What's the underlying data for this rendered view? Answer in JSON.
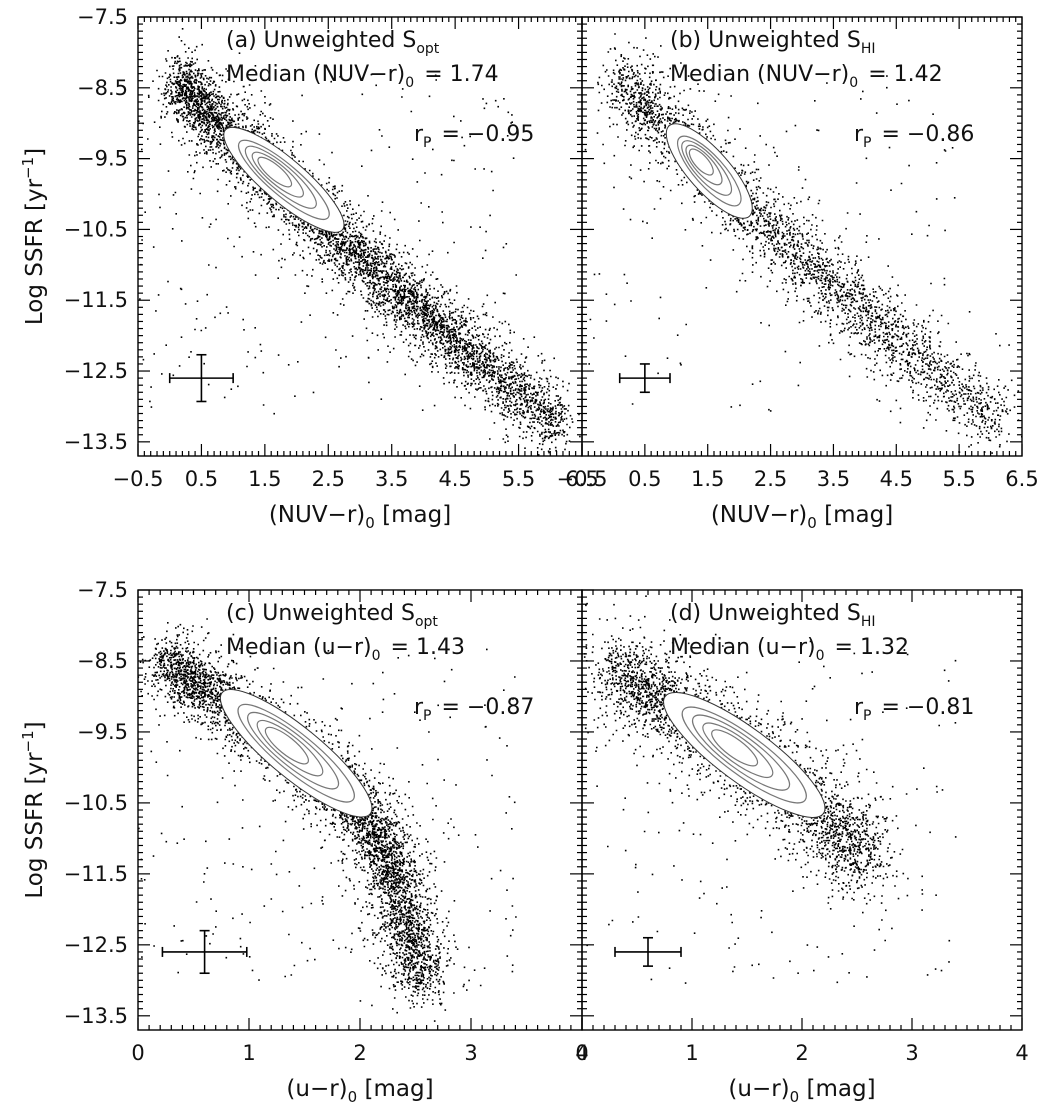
{
  "chart_data": [
    {
      "panel": "a",
      "type": "scatter",
      "title_prefix": "(a) Unweighted S",
      "title_sub": "opt",
      "median_prefix": "Median (NUV−r)",
      "median_sub": "0",
      "median_value": "= 1.74",
      "corr_prefix": "r",
      "corr_sub": "P",
      "corr_value": "= −0.95",
      "xlabel_main": "(NUV−r)",
      "xlabel_sub": "0",
      "xlabel_unit": " [mag]",
      "ylabel_main": "Log SSFR [yr",
      "ylabel_sup": "−1",
      "ylabel_end": "]",
      "xlim": [
        -0.5,
        6.5
      ],
      "ylim": [
        -13.7,
        -7.5
      ],
      "xticks": [
        "−0.5",
        "0.5",
        "1.5",
        "2.5",
        "3.5",
        "4.5",
        "5.5",
        "6.5"
      ],
      "yticks": [
        "−7.5",
        "−8.5",
        "−9.5",
        "−10.5",
        "−11.5",
        "−12.5",
        "−13.5"
      ],
      "errorbar": {
        "x": 0.5,
        "y": -12.6,
        "xerr": 0.5,
        "yerr": 0.33
      },
      "relation": {
        "x": [
          0.1,
          1.0,
          2.0,
          3.0,
          4.0,
          5.0,
          6.2
        ],
        "y": [
          -8.4,
          -9.2,
          -10.05,
          -10.9,
          -11.7,
          -12.45,
          -13.3
        ],
        "scatter": 0.25,
        "n": 5400
      },
      "contour_ridge": {
        "x0": 0.95,
        "y0": -9.15,
        "x1": 2.65,
        "y1": -10.45,
        "width": 0.16
      }
    },
    {
      "panel": "b",
      "type": "scatter",
      "title_prefix": "(b) Unweighted S",
      "title_sub": "HI",
      "median_prefix": "Median (NUV−r)",
      "median_sub": "0",
      "median_value": "= 1.42",
      "corr_prefix": "r",
      "corr_sub": "P",
      "corr_value": "= −0.86",
      "xlabel_main": "(NUV−r)",
      "xlabel_sub": "0",
      "xlabel_unit": " [mag]",
      "ylabel_main": "",
      "ylabel_sup": "",
      "ylabel_end": "",
      "xlim": [
        -0.5,
        6.5
      ],
      "ylim": [
        -13.7,
        -7.5
      ],
      "xticks": [
        "−0.5",
        "0.5",
        "1.5",
        "2.5",
        "3.5",
        "4.5",
        "5.5",
        "6.5"
      ],
      "yticks": [],
      "errorbar": {
        "x": 0.5,
        "y": -12.6,
        "xerr": 0.4,
        "yerr": 0.2
      },
      "relation": {
        "x": [
          0.1,
          1.0,
          2.0,
          3.0,
          4.0,
          5.0,
          6.2
        ],
        "y": [
          -8.4,
          -9.2,
          -10.1,
          -10.9,
          -11.7,
          -12.45,
          -13.2
        ],
        "scatter": 0.28,
        "n": 3000
      },
      "contour_ridge": {
        "x0": 0.95,
        "y0": -9.1,
        "x1": 2.1,
        "y1": -10.25,
        "width": 0.15
      }
    },
    {
      "panel": "c",
      "type": "scatter",
      "title_prefix": "(c) Unweighted S",
      "title_sub": "opt",
      "median_prefix": "Median (u−r)",
      "median_sub": "0",
      "median_value": "= 1.43",
      "corr_prefix": "r",
      "corr_sub": "P",
      "corr_value": "= −0.87",
      "xlabel_main": "(u−r)",
      "xlabel_sub": "0",
      "xlabel_unit": " [mag]",
      "ylabel_main": "Log SSFR [yr",
      "ylabel_sup": "−1",
      "ylabel_end": "]",
      "xlim": [
        0,
        4
      ],
      "ylim": [
        -13.7,
        -7.5
      ],
      "xticks": [
        "0",
        "1",
        "2",
        "3",
        "4"
      ],
      "yticks": [
        "−7.5",
        "−8.5",
        "−9.5",
        "−10.5",
        "−11.5",
        "−12.5",
        "−13.5"
      ],
      "errorbar": {
        "x": 0.6,
        "y": -12.6,
        "xerr": 0.38,
        "yerr": 0.3
      },
      "relation": {
        "x": [
          0.25,
          0.7,
          1.3,
          1.8,
          2.1,
          2.3,
          2.45,
          2.55
        ],
        "y": [
          -8.5,
          -9.0,
          -9.7,
          -10.3,
          -10.8,
          -11.5,
          -12.3,
          -13.1
        ],
        "scatter": 0.22,
        "n": 4800
      },
      "contour_ridge": {
        "x0": 0.8,
        "y0": -9.0,
        "x1": 2.05,
        "y1": -10.6,
        "width": 0.22
      }
    },
    {
      "panel": "d",
      "type": "scatter",
      "title_prefix": "(d) Unweighted S",
      "title_sub": "HI",
      "median_prefix": "Median (u−r)",
      "median_sub": "0",
      "median_value": "= 1.32",
      "corr_prefix": "r",
      "corr_sub": "P",
      "corr_value": "= −0.81",
      "xlabel_main": "(u−r)",
      "xlabel_sub": "0",
      "xlabel_unit": " [mag]",
      "ylabel_main": "",
      "ylabel_sup": "",
      "ylabel_end": "",
      "xlim": [
        0,
        4
      ],
      "ylim": [
        -13.7,
        -7.5
      ],
      "xticks": [
        "0",
        "1",
        "2",
        "3",
        "4"
      ],
      "yticks": [],
      "errorbar": {
        "x": 0.6,
        "y": -12.6,
        "xerr": 0.3,
        "yerr": 0.2
      },
      "relation": {
        "x": [
          0.3,
          0.8,
          1.3,
          1.8,
          2.3,
          2.6
        ],
        "y": [
          -8.6,
          -9.1,
          -9.65,
          -10.2,
          -10.85,
          -11.3
        ],
        "scatter": 0.3,
        "n": 3200
      },
      "contour_ridge": {
        "x0": 0.8,
        "y0": -9.05,
        "x1": 2.15,
        "y1": -10.6,
        "width": 0.24
      }
    }
  ]
}
